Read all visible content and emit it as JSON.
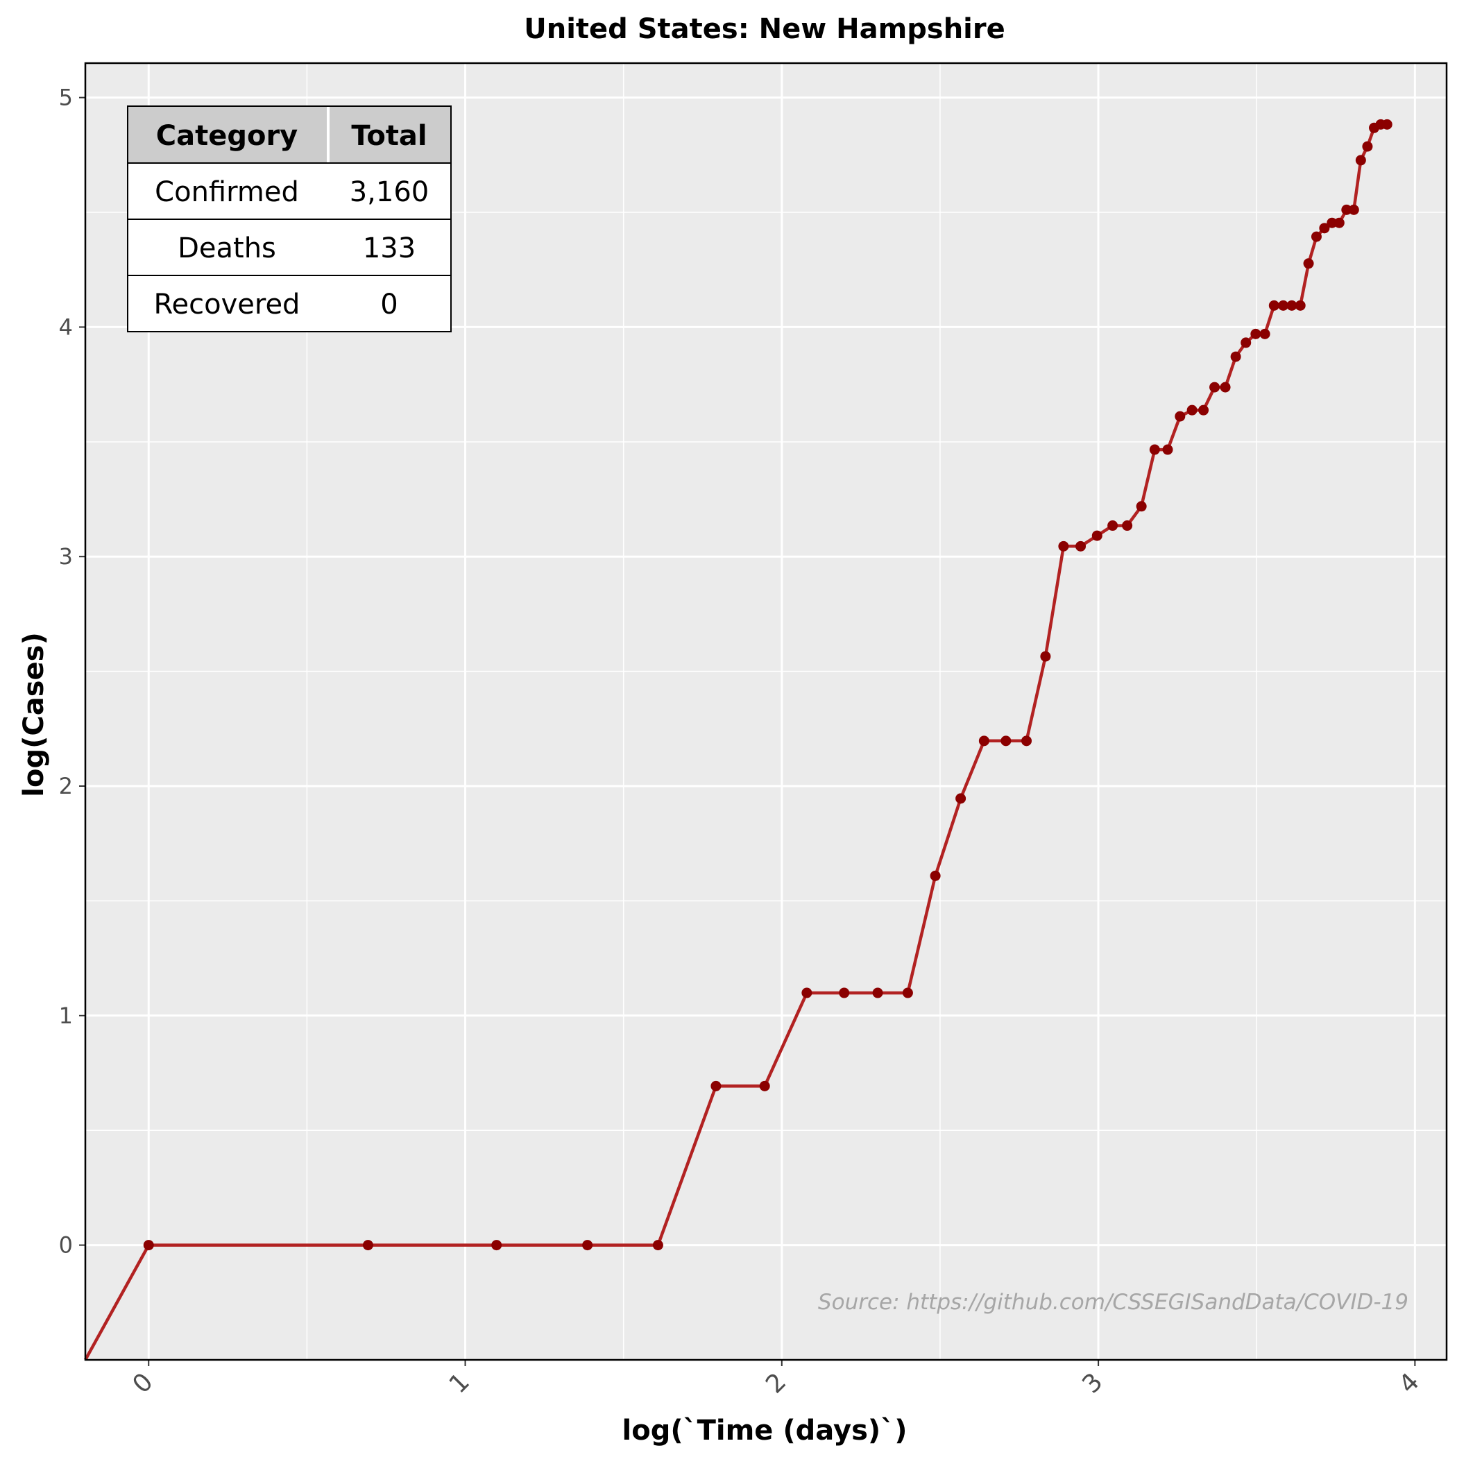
{
  "chart_data": {
    "type": "line",
    "title": "United States: New Hampshire",
    "xlabel": "log(`Time (days)`)",
    "ylabel": "log(Cases)",
    "xlim": [
      -0.2,
      4.1
    ],
    "ylim": [
      -0.5,
      5.15
    ],
    "x_ticks": [
      0,
      1,
      2,
      3,
      4
    ],
    "y_ticks": [
      0,
      1,
      2,
      3,
      4,
      5
    ],
    "grid": true,
    "line_color": "#b22222",
    "point_color": "#8b0000",
    "panel_background": "#ebebeb",
    "series": [
      {
        "x": [
          -0.2,
          0,
          0.693,
          1.099,
          1.386,
          1.609,
          1.792,
          1.946,
          2.079,
          2.197,
          2.303,
          2.398,
          2.485,
          2.565,
          2.639,
          2.708,
          2.773,
          2.833,
          2.89,
          2.944,
          2.996,
          3.045,
          3.091,
          3.136,
          3.178,
          3.219,
          3.258,
          3.296,
          3.332,
          3.367,
          3.401,
          3.434,
          3.466,
          3.497,
          3.526,
          3.555,
          3.584,
          3.611,
          3.638,
          3.664,
          3.689,
          3.714,
          3.738,
          3.761,
          3.784,
          3.807,
          3.829,
          3.85,
          3.871,
          3.892,
          3.912
        ],
        "y": [
          -0.5,
          0,
          0,
          0,
          0,
          0,
          0.693,
          0.693,
          1.099,
          1.099,
          1.099,
          1.099,
          1.609,
          1.946,
          2.197,
          2.197,
          2.197,
          2.565,
          3.045,
          3.045,
          3.091,
          3.135,
          3.135,
          3.219,
          3.466,
          3.466,
          3.611,
          3.638,
          3.638,
          3.738,
          3.738,
          3.871,
          3.932,
          3.97,
          3.97,
          4.094,
          4.094,
          4.094,
          4.094,
          4.277,
          4.394,
          4.431,
          4.454,
          4.454,
          4.511,
          4.511,
          4.727,
          4.787,
          4.868,
          4.883,
          4.883
        ]
      }
    ],
    "annotation": "Source: https://github.com/CSSEGISandData/COVID-19",
    "table": {
      "headers": [
        "Category",
        "Total"
      ],
      "rows": [
        [
          "Confirmed",
          "3,160"
        ],
        [
          "Deaths",
          "133"
        ],
        [
          "Recovered",
          "0"
        ]
      ]
    }
  }
}
